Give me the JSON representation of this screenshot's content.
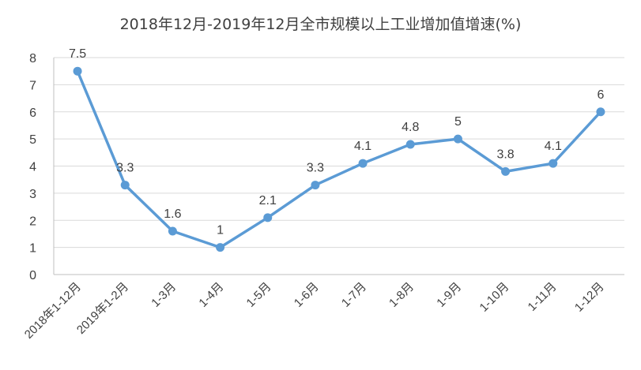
{
  "chart_data": {
    "type": "line",
    "title": "2018年12月-2019年12月全市规模以上工业增加值增速(%)",
    "xlabel": "",
    "ylabel": "",
    "categories": [
      "2018年1-12月",
      "2019年1-2月",
      "1-3月",
      "1-4月",
      "1-5月",
      "1-6月",
      "1-7月",
      "1-8月",
      "1-9月",
      "1-10月",
      "1-11月",
      "1-12月"
    ],
    "series": [
      {
        "values": [
          7.5,
          3.3,
          1.6,
          1,
          2.1,
          3.3,
          4.1,
          4.8,
          5,
          3.8,
          4.1,
          6
        ]
      }
    ],
    "value_labels": [
      "7.5",
      "3.3",
      "1.6",
      "1",
      "2.1",
      "3.3",
      "4.1",
      "4.8",
      "5",
      "3.8",
      "4.1",
      "6"
    ],
    "y_ticks": [
      "0",
      "1",
      "2",
      "3",
      "4",
      "5",
      "6",
      "7",
      "8"
    ],
    "ylim": [
      0,
      8
    ],
    "grid": true,
    "legend": "none",
    "colors": {
      "line": "#5b9bd5",
      "grid": "#d9d9d9",
      "text": "#404040"
    }
  }
}
